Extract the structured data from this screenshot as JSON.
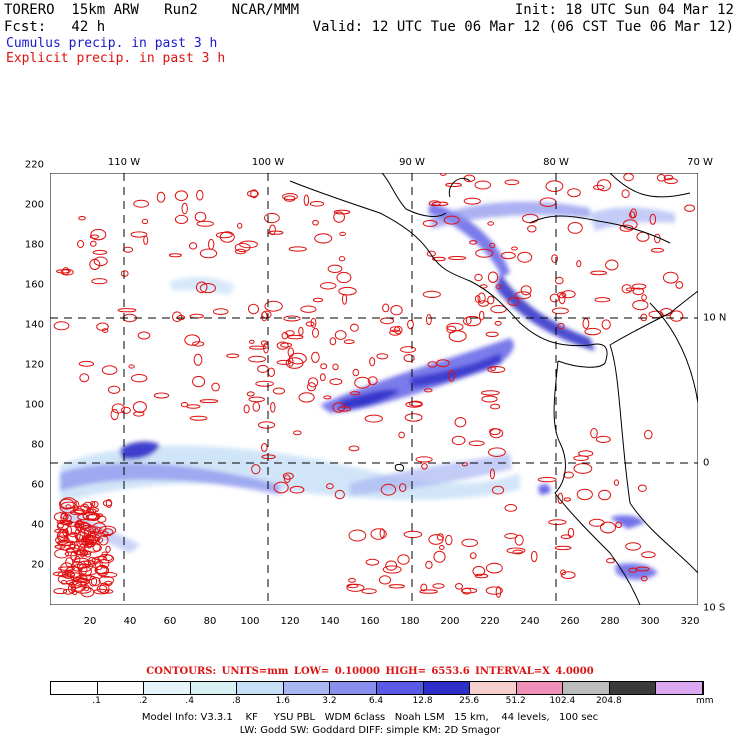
{
  "header": {
    "line1_left": "TORERO  15km ARW   Run2    NCAR/MMM",
    "line1_right": "Init: 18 UTC Sun 04 Mar 12",
    "line2_left": "Fcst:   42 h",
    "line2_right": "Valid: 12 UTC Tue 06 Mar 12 (06 CST Tue 06 Mar 12)",
    "cumulus_label": "Cumulus precip. in past 3 h",
    "explicit_label": "Explicit precip. in past 3 h"
  },
  "map": {
    "lon_labels": [
      {
        "text": "110 W",
        "x": 124
      },
      {
        "text": "100 W",
        "x": 268
      },
      {
        "text": "90 W",
        "x": 412
      },
      {
        "text": "80 W",
        "x": 556
      },
      {
        "text": "70 W",
        "x": 700
      }
    ],
    "lat_labels": [
      {
        "text": "10 N",
        "y": 318
      },
      {
        "text": "0",
        "y": 463
      },
      {
        "text": "10 S",
        "y": 608
      }
    ],
    "x_ticks": [
      "20",
      "40",
      "60",
      "80",
      "100",
      "120",
      "140",
      "160",
      "180",
      "200",
      "220",
      "240",
      "260",
      "280",
      "300",
      "320"
    ],
    "y_ticks": [
      "20",
      "40",
      "60",
      "80",
      "100",
      "120",
      "140",
      "160",
      "180",
      "200",
      "220"
    ],
    "grid_colors": {
      "contour": "#e01010",
      "coast": "#000000"
    }
  },
  "legend": {
    "contours_text": "CONTOURS:  UNITS=mm  LOW= 0.10000      HIGH=  6553.6      INTERVAL=X  4.0000",
    "unit": "mm",
    "ticks": [
      ".1",
      ".2",
      ".4",
      ".8",
      "1.6",
      "3.2",
      "6.4",
      "12.8",
      "25.6",
      "51.2",
      "102.4",
      "204.8"
    ],
    "colors": [
      "#ffffff",
      "#ffffff",
      "#e8f4fb",
      "#d8f2f4",
      "#c6dff6",
      "#a8b6f2",
      "#8890ec",
      "#5a5ae6",
      "#2e2ec8",
      "#f6cece",
      "#ee90b8",
      "#bcbcbc",
      "#3a3a3a",
      "#dca8f2"
    ]
  },
  "footer": {
    "line1": "Model Info: V3.3.1    KF     YSU PBL   WDM 6class   Noah LSM   15 km,    44 levels,   100 sec",
    "line2": "LW: Godd SW: Goddard DIFF: simple KM: 2D Smagor"
  }
}
